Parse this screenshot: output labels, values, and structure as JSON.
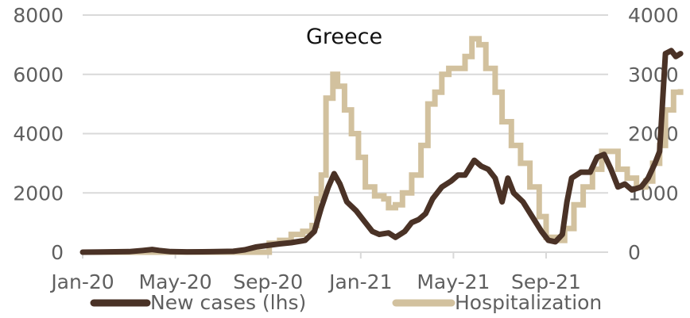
{
  "chart_data": {
    "type": "line",
    "title": "Greece",
    "xlabel": "",
    "ylabel_left": "",
    "ylabel_right": "",
    "x_tick_labels": [
      "Jan-20",
      "May-20",
      "Sep-20",
      "Jan-21",
      "May-21",
      "Sep-21"
    ],
    "left_axis": {
      "ticks": [
        0,
        2000,
        4000,
        6000,
        8000
      ],
      "ylim": [
        0,
        8000
      ]
    },
    "right_axis": {
      "ticks": [
        0,
        1000,
        2000,
        3000,
        4000
      ],
      "ylim": [
        0,
        4000
      ]
    },
    "grid": true,
    "legend": {
      "position": "bottom",
      "entries": [
        "New cases (lhs)",
        "Hospitalization"
      ]
    },
    "colors": {
      "new_cases": "#4a3226",
      "hospitalization": "#d2c19e",
      "grid": "#d9d9d9",
      "axis_text": "#5f5f5f"
    },
    "x_unit": "months since Jan-20",
    "series": [
      {
        "name": "New cases (lhs)",
        "axis": "left",
        "points": [
          [
            0,
            0
          ],
          [
            2,
            20
          ],
          [
            2.6,
            60
          ],
          [
            3,
            90
          ],
          [
            3.3,
            60
          ],
          [
            3.8,
            20
          ],
          [
            4.5,
            10
          ],
          [
            5.5,
            15
          ],
          [
            6.5,
            30
          ],
          [
            7,
            80
          ],
          [
            7.5,
            180
          ],
          [
            8,
            230
          ],
          [
            8.5,
            280
          ],
          [
            9,
            320
          ],
          [
            9.6,
            400
          ],
          [
            10,
            700
          ],
          [
            10.3,
            1500
          ],
          [
            10.6,
            2200
          ],
          [
            10.85,
            2650
          ],
          [
            11.1,
            2300
          ],
          [
            11.4,
            1700
          ],
          [
            11.8,
            1400
          ],
          [
            12.2,
            1000
          ],
          [
            12.5,
            700
          ],
          [
            12.8,
            600
          ],
          [
            13.2,
            650
          ],
          [
            13.5,
            500
          ],
          [
            13.9,
            700
          ],
          [
            14.2,
            1000
          ],
          [
            14.5,
            1100
          ],
          [
            14.8,
            1300
          ],
          [
            15.1,
            1800
          ],
          [
            15.5,
            2200
          ],
          [
            15.9,
            2400
          ],
          [
            16.2,
            2600
          ],
          [
            16.5,
            2600
          ],
          [
            16.9,
            3100
          ],
          [
            17.2,
            2900
          ],
          [
            17.5,
            2800
          ],
          [
            17.8,
            2500
          ],
          [
            18.1,
            1700
          ],
          [
            18.35,
            2500
          ],
          [
            18.6,
            2000
          ],
          [
            19,
            1700
          ],
          [
            19.4,
            1200
          ],
          [
            19.8,
            700
          ],
          [
            20.1,
            400
          ],
          [
            20.4,
            350
          ],
          [
            20.7,
            600
          ],
          [
            20.9,
            1700
          ],
          [
            21.1,
            2500
          ],
          [
            21.5,
            2700
          ],
          [
            21.9,
            2700
          ],
          [
            22.2,
            3200
          ],
          [
            22.5,
            3300
          ],
          [
            22.8,
            2800
          ],
          [
            23.1,
            2200
          ],
          [
            23.4,
            2300
          ],
          [
            23.7,
            2100
          ],
          [
            24.1,
            2200
          ],
          [
            24.4,
            2500
          ],
          [
            24.7,
            3000
          ],
          [
            24.9,
            3400
          ],
          [
            25.15,
            6700
          ],
          [
            25.4,
            6800
          ],
          [
            25.6,
            6600
          ],
          [
            25.8,
            6700
          ]
        ]
      },
      {
        "name": "Hospitalization",
        "axis": "right",
        "points": [
          [
            0,
            0
          ],
          [
            8,
            0
          ],
          [
            8.05,
            150
          ],
          [
            8.5,
            200
          ],
          [
            9,
            300
          ],
          [
            9.5,
            350
          ],
          [
            9.9,
            450
          ],
          [
            10.1,
            900
          ],
          [
            10.3,
            1300
          ],
          [
            10.5,
            2600
          ],
          [
            10.8,
            3000
          ],
          [
            11,
            2800
          ],
          [
            11.3,
            2400
          ],
          [
            11.6,
            2000
          ],
          [
            11.9,
            1600
          ],
          [
            12.2,
            1100
          ],
          [
            12.6,
            950
          ],
          [
            13,
            900
          ],
          [
            13.2,
            750
          ],
          [
            13.5,
            800
          ],
          [
            13.8,
            1000
          ],
          [
            14.2,
            1300
          ],
          [
            14.6,
            1800
          ],
          [
            14.9,
            2500
          ],
          [
            15.2,
            2700
          ],
          [
            15.5,
            3000
          ],
          [
            15.8,
            3100
          ],
          [
            16.2,
            3100
          ],
          [
            16.5,
            3300
          ],
          [
            16.8,
            3600
          ],
          [
            17.1,
            3500
          ],
          [
            17.4,
            3100
          ],
          [
            17.8,
            2700
          ],
          [
            18.1,
            2200
          ],
          [
            18.5,
            1800
          ],
          [
            18.9,
            1500
          ],
          [
            19.3,
            1100
          ],
          [
            19.7,
            600
          ],
          [
            20,
            250
          ],
          [
            20.4,
            200
          ],
          [
            20.8,
            400
          ],
          [
            21.2,
            800
          ],
          [
            21.6,
            1100
          ],
          [
            22,
            1400
          ],
          [
            22.4,
            1700
          ],
          [
            22.8,
            1700
          ],
          [
            23.1,
            1400
          ],
          [
            23.5,
            1250
          ],
          [
            23.9,
            1100
          ],
          [
            24.3,
            1200
          ],
          [
            24.6,
            1500
          ],
          [
            24.9,
            1800
          ],
          [
            25.15,
            2400
          ],
          [
            25.5,
            2700
          ],
          [
            25.8,
            2750
          ]
        ]
      }
    ]
  }
}
